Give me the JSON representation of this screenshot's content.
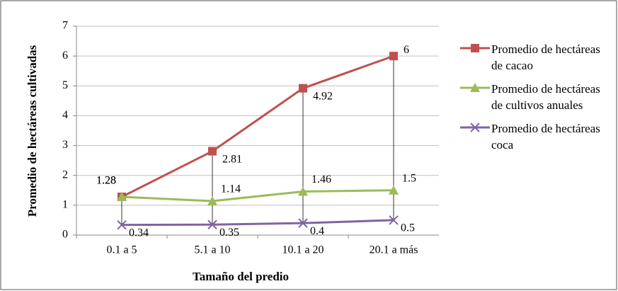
{
  "chart_data": {
    "type": "line",
    "x_label": "Tamaño del predio",
    "y_label": "Promedio de hectáreas cultivadas",
    "categories": [
      "0.1 a 5",
      "5.1 a 10",
      "10.1 a 20",
      "20.1 a más"
    ],
    "series": [
      {
        "name": "Promedio de hectáreas de cacao",
        "color": "#c0504d",
        "marker": "square",
        "values": [
          1.28,
          2.81,
          4.92,
          6
        ]
      },
      {
        "name": "Promedio de hectáreas de cultivos anuales",
        "color": "#9bbb59",
        "marker": "triangle",
        "values": [
          1.28,
          1.14,
          1.46,
          1.5
        ]
      },
      {
        "name": "Promedio de hectáreas coca",
        "color": "#8064a2",
        "marker": "x",
        "values": [
          0.34,
          0.35,
          0.4,
          0.5
        ]
      }
    ],
    "ylim": [
      0,
      7
    ],
    "yticks": [
      0,
      1,
      2,
      3,
      4,
      5,
      6,
      7
    ],
    "grid": true,
    "drop_lines": true,
    "legend": "right"
  }
}
